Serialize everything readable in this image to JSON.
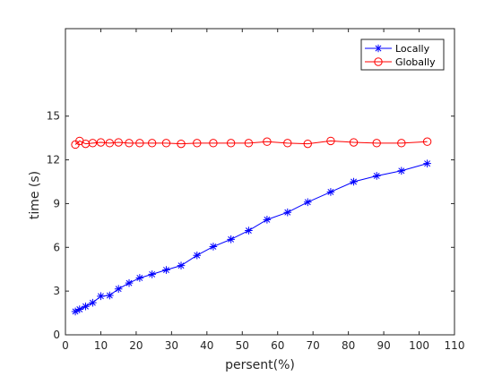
{
  "chart_data": {
    "type": "line",
    "xlabel": "persent(%)",
    "ylabel": "time (s)",
    "xlim": [
      0,
      110
    ],
    "ylim": [
      0,
      21
    ],
    "xticks": [
      0,
      10,
      20,
      30,
      40,
      50,
      60,
      70,
      80,
      90,
      100,
      110
    ],
    "yticks": [
      0,
      3,
      6,
      9,
      12,
      15
    ],
    "grid": false,
    "legend_position": "top-right",
    "series": [
      {
        "name": "Locally",
        "color": "#0000ff",
        "marker": "asterisk",
        "x": [
          2.8,
          4.0,
          5.7,
          7.7,
          10.0,
          12.5,
          15.0,
          18.0,
          21.0,
          24.5,
          28.5,
          32.7,
          37.2,
          41.8,
          46.8,
          51.8,
          57.0,
          62.8,
          68.5,
          75.0,
          81.5,
          88.0,
          95.0,
          102.3
        ],
        "y": [
          1.6,
          1.75,
          1.95,
          2.2,
          2.65,
          2.7,
          3.15,
          3.55,
          3.9,
          4.15,
          4.45,
          4.75,
          5.45,
          6.05,
          6.55,
          7.15,
          7.9,
          8.4,
          9.1,
          9.8,
          10.5,
          10.9,
          11.25,
          11.75
        ]
      },
      {
        "name": "Globally",
        "color": "#ff0000",
        "marker": "circle",
        "x": [
          2.8,
          4.0,
          5.7,
          7.7,
          10.0,
          12.5,
          15.0,
          18.0,
          21.0,
          24.5,
          28.5,
          32.7,
          37.2,
          41.8,
          46.8,
          51.8,
          57.0,
          62.8,
          68.5,
          75.0,
          81.5,
          88.0,
          95.0,
          102.3
        ],
        "y": [
          13.05,
          13.3,
          13.1,
          13.15,
          13.2,
          13.15,
          13.2,
          13.15,
          13.15,
          13.15,
          13.15,
          13.1,
          13.15,
          13.15,
          13.15,
          13.15,
          13.25,
          13.15,
          13.1,
          13.3,
          13.2,
          13.15,
          13.15,
          13.25
        ]
      }
    ]
  }
}
